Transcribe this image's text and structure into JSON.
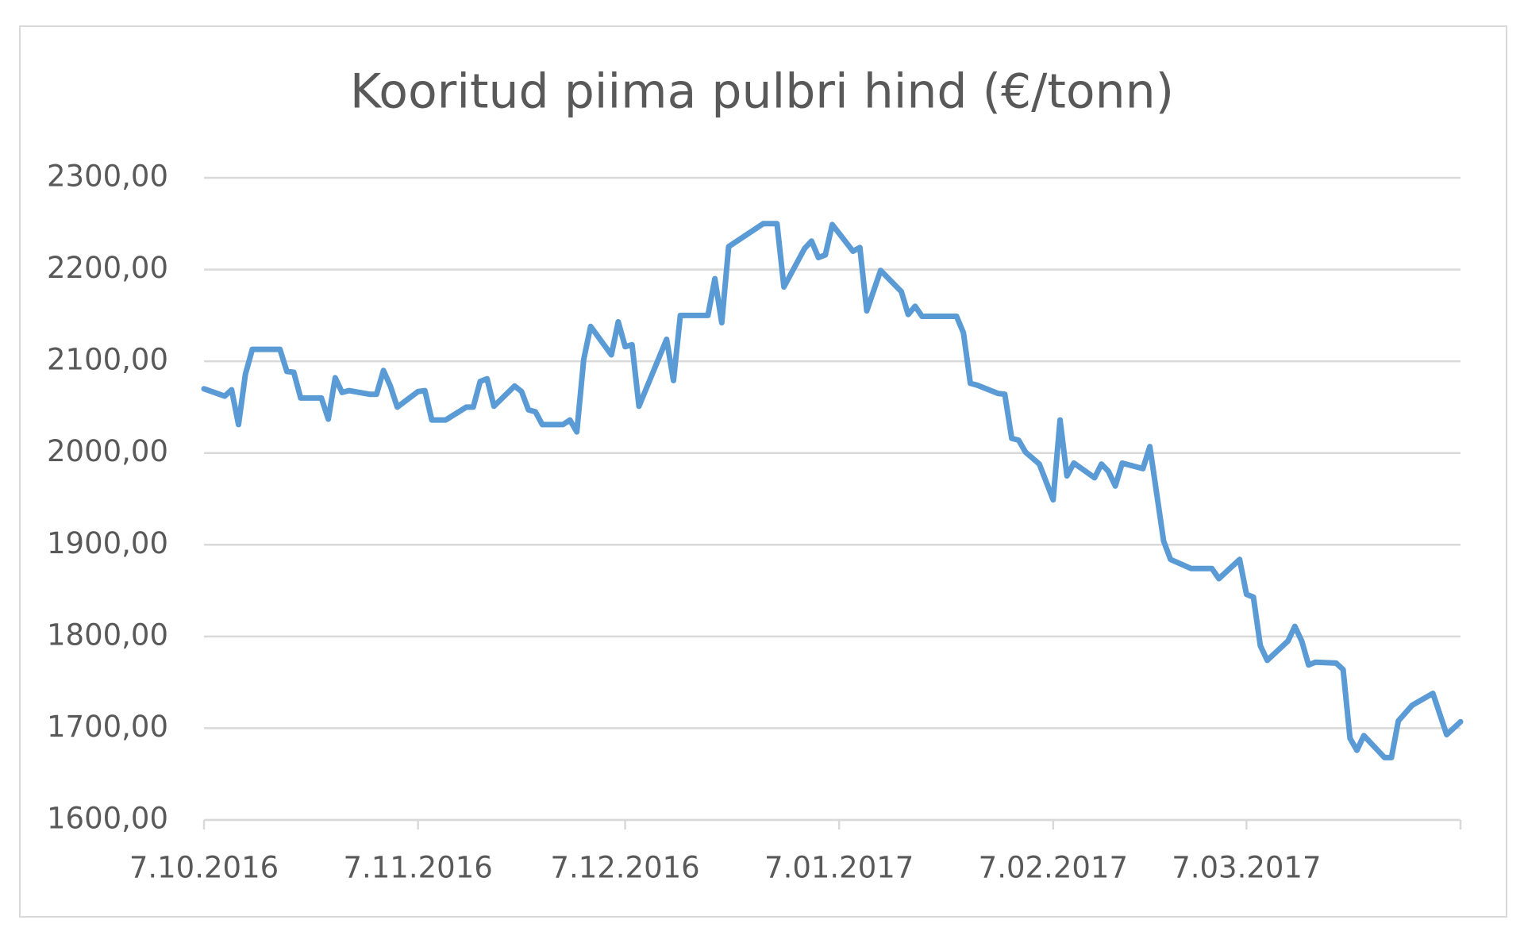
{
  "chart_data": {
    "type": "line",
    "title": "Kooritud piima pulbri hind (€/tonn)",
    "x": [
      "2016-10-07",
      "2016-10-10",
      "2016-10-11",
      "2016-10-12",
      "2016-10-13",
      "2016-10-14",
      "2016-10-18",
      "2016-10-19",
      "2016-10-20",
      "2016-10-21",
      "2016-10-24",
      "2016-10-25",
      "2016-10-26",
      "2016-10-27",
      "2016-10-28",
      "2016-10-31",
      "2016-11-01",
      "2016-11-02",
      "2016-11-03",
      "2016-11-04",
      "2016-11-07",
      "2016-11-08",
      "2016-11-09",
      "2016-11-11",
      "2016-11-14",
      "2016-11-15",
      "2016-11-16",
      "2016-11-17",
      "2016-11-18",
      "2016-11-21",
      "2016-11-22",
      "2016-11-23",
      "2016-11-24",
      "2016-11-25",
      "2016-11-28",
      "2016-11-29",
      "2016-11-30",
      "2016-12-01",
      "2016-12-02",
      "2016-12-05",
      "2016-12-06",
      "2016-12-07",
      "2016-12-08",
      "2016-12-09",
      "2016-12-13",
      "2016-12-14",
      "2016-12-15",
      "2016-12-19",
      "2016-12-20",
      "2016-12-21",
      "2016-12-22",
      "2016-12-27",
      "2016-12-29",
      "2016-12-30",
      "2017-01-02",
      "2017-01-03",
      "2017-01-04",
      "2017-01-05",
      "2017-01-06",
      "2017-01-09",
      "2017-01-10",
      "2017-01-11",
      "2017-01-13",
      "2017-01-16",
      "2017-01-17",
      "2017-01-18",
      "2017-01-19",
      "2017-01-24",
      "2017-01-25",
      "2017-01-26",
      "2017-01-27",
      "2017-01-30",
      "2017-01-31",
      "2017-02-01",
      "2017-02-02",
      "2017-02-03",
      "2017-02-05",
      "2017-02-07",
      "2017-02-08",
      "2017-02-09",
      "2017-02-10",
      "2017-02-13",
      "2017-02-14",
      "2017-02-15",
      "2017-02-16",
      "2017-02-17",
      "2017-02-20",
      "2017-02-21",
      "2017-02-23",
      "2017-02-24",
      "2017-02-27",
      "2017-03-02",
      "2017-03-03",
      "2017-03-06",
      "2017-03-07",
      "2017-03-08",
      "2017-03-09",
      "2017-03-10",
      "2017-03-13",
      "2017-03-14",
      "2017-03-15",
      "2017-03-16",
      "2017-03-17",
      "2017-03-20",
      "2017-03-21",
      "2017-03-22",
      "2017-03-23",
      "2017-03-24",
      "2017-03-27",
      "2017-03-28",
      "2017-03-29",
      "2017-03-31",
      "2017-04-03",
      "2017-04-05",
      "2017-04-07"
    ],
    "series": [
      {
        "name": "Kooritud piima pulbri hind",
        "color": "#5b9bd5",
        "values": [
          2070,
          2062,
          2069,
          2031,
          2086,
          2113,
          2113,
          2089,
          2088,
          2060,
          2060,
          2037,
          2082,
          2066,
          2068,
          2064,
          2064,
          2090,
          2073,
          2050,
          2067,
          2068,
          2036,
          2036,
          2050,
          2050,
          2078,
          2081,
          2051,
          2073,
          2067,
          2047,
          2045,
          2031,
          2031,
          2036,
          2023,
          2102,
          2138,
          2107,
          2143,
          2116,
          2118,
          2051,
          2124,
          2079,
          2150,
          2150,
          2190,
          2142,
          2225,
          2250,
          2250,
          2181,
          2223,
          2231,
          2213,
          2216,
          2249,
          2220,
          2224,
          2155,
          2199,
          2176,
          2151,
          2160,
          2149,
          2149,
          2131,
          2076,
          2074,
          2065,
          2064,
          2016,
          2014,
          2001,
          1988,
          1949,
          2036,
          1975,
          1989,
          1973,
          1988,
          1980,
          1964,
          1989,
          1983,
          2007,
          1904,
          1884,
          1874,
          1874,
          1863,
          1884,
          1846,
          1843,
          1790,
          1774,
          1795,
          1811,
          1795,
          1769,
          1772,
          1771,
          1764,
          1689,
          1676,
          1692,
          1668,
          1668,
          1708,
          1725,
          1738,
          1693,
          1707
        ]
      }
    ],
    "xlim": [
      "2016-10-07",
      "2017-04-07"
    ],
    "xticks": [
      {
        "value": "2016-10-07",
        "label": "7.10.2016"
      },
      {
        "value": "2016-11-07",
        "label": "7.11.2016"
      },
      {
        "value": "2016-12-07",
        "label": "7.12.2016"
      },
      {
        "value": "2017-01-07",
        "label": "7.01.2017"
      },
      {
        "value": "2017-02-07",
        "label": "7.02.2017"
      },
      {
        "value": "2017-03-07",
        "label": "7.03.2017"
      }
    ],
    "ylim": [
      1600,
      2300
    ],
    "yticks": [
      {
        "value": 1600,
        "label": "1600,00"
      },
      {
        "value": 1700,
        "label": "1700,00"
      },
      {
        "value": 1800,
        "label": "1800,00"
      },
      {
        "value": 1900,
        "label": "1900,00"
      },
      {
        "value": 2000,
        "label": "2000,00"
      },
      {
        "value": 2100,
        "label": "2100,00"
      },
      {
        "value": 2200,
        "label": "2200,00"
      },
      {
        "value": 2300,
        "label": "2300,00"
      }
    ],
    "grid": true
  }
}
